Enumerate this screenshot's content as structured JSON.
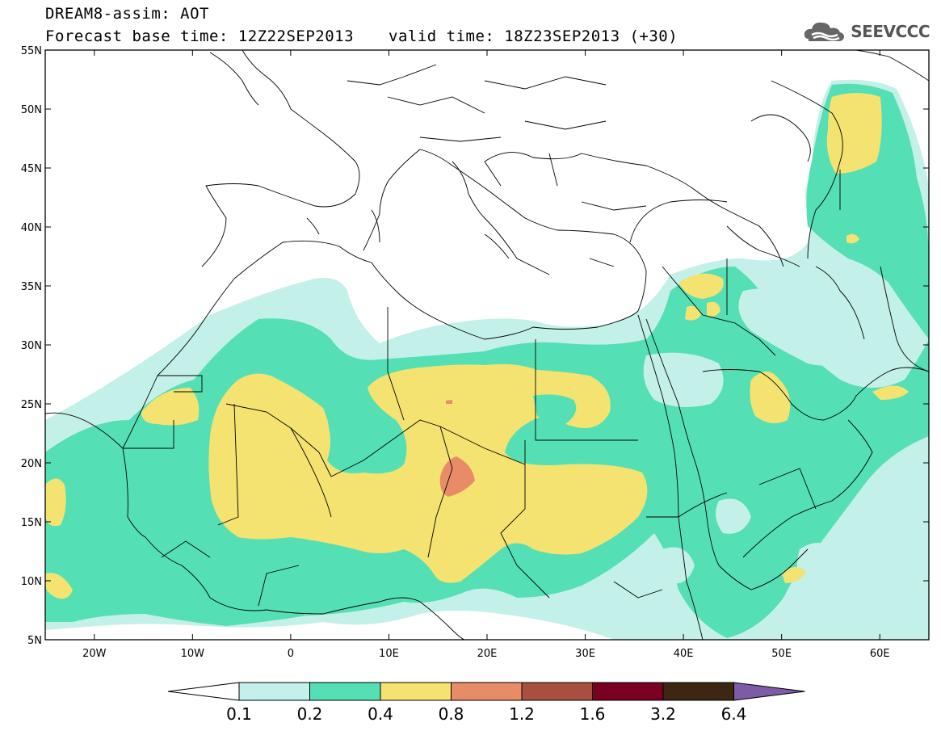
{
  "header": {
    "title": "DREAM8-assim: AOT",
    "base_time": "Forecast base time: 12Z22SEP2013",
    "valid_time": "valid time: 18Z23SEP2013 (+30)",
    "logo_text": "SEEVCCC"
  },
  "map": {
    "lon_range": [
      -25,
      65
    ],
    "lat_range": [
      5,
      55
    ],
    "lat_ticks": [
      "55N",
      "50N",
      "45N",
      "40N",
      "35N",
      "30N",
      "25N",
      "20N",
      "15N",
      "10N",
      "5N"
    ],
    "lon_ticks": [
      "20W",
      "10W",
      "0",
      "10E",
      "20E",
      "30E",
      "40E",
      "50E",
      "60E"
    ]
  },
  "colorbar": {
    "labels": [
      "0.1",
      "0.2",
      "0.4",
      "0.8",
      "1.2",
      "1.6",
      "3.2",
      "6.4"
    ],
    "colors": [
      "#ffffff",
      "#c3f0e8",
      "#55dfb5",
      "#f4e371",
      "#e88c68",
      "#a8503f",
      "#7a0022",
      "#3e2712",
      "#7d5ba6"
    ]
  },
  "legend_colors": {
    "level_01": "#c3f0e8",
    "level_02": "#55dfb5",
    "level_04": "#f4e371",
    "level_08": "#e88c68"
  }
}
